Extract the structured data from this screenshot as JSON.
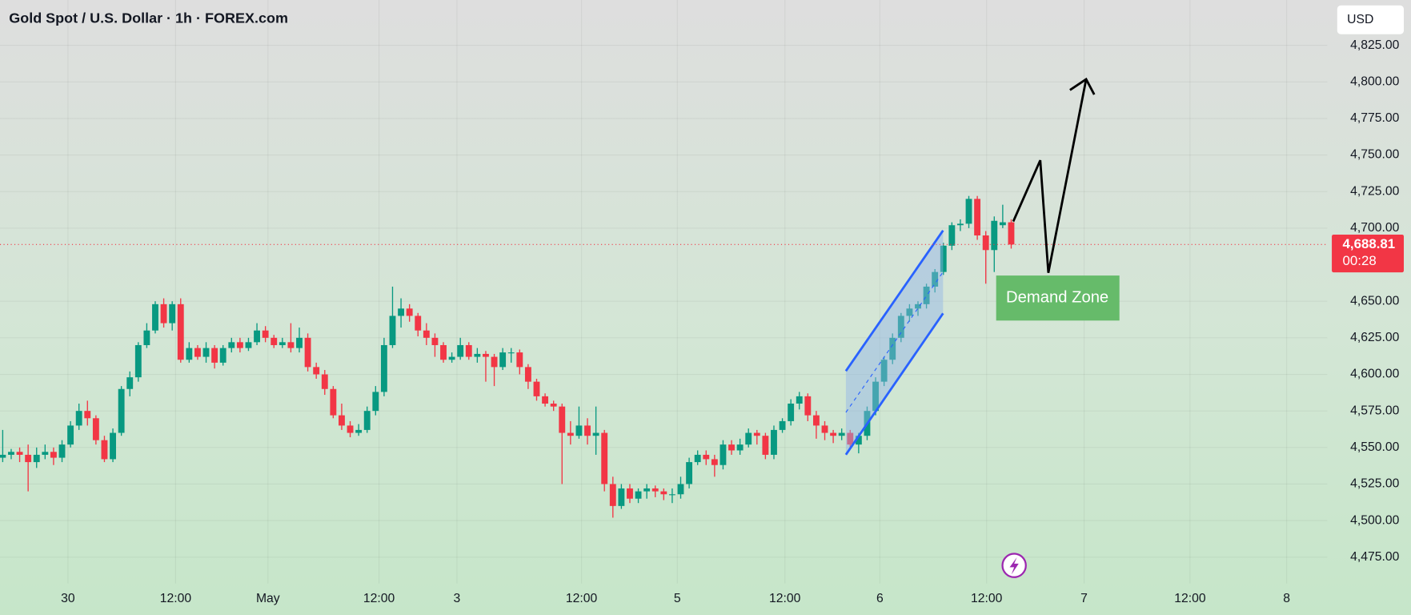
{
  "chart_data": {
    "type": "candlestick",
    "title": "Gold Spot / U.S. Dollar · 1h · FOREX.com",
    "currency": "USD",
    "last_price_label": "4,688.81",
    "countdown": "00:28",
    "annotation": "Demand Zone",
    "up_color": "#089981",
    "down_color": "#f23645",
    "grid": true,
    "xlim": [
      -0.32,
      156.3
    ],
    "ylim": [
      4457,
      4856
    ],
    "xticks": [
      {
        "value": 7.7,
        "label": "30"
      },
      {
        "value": 20.4,
        "label": "12:00"
      },
      {
        "value": 31.3,
        "label": "May"
      },
      {
        "value": 44.4,
        "label": "12:00"
      },
      {
        "value": 53.6,
        "label": "3"
      },
      {
        "value": 68.3,
        "label": "12:00"
      },
      {
        "value": 79.6,
        "label": "5"
      },
      {
        "value": 92.3,
        "label": "12:00"
      },
      {
        "value": 103.5,
        "label": "6"
      },
      {
        "value": 116.1,
        "label": "12:00"
      },
      {
        "value": 127.6,
        "label": "7"
      },
      {
        "value": 140.1,
        "label": "12:00"
      },
      {
        "value": 151.5,
        "label": "8"
      }
    ],
    "yticks": [
      {
        "value": 4475,
        "label": "4,475.00"
      },
      {
        "value": 4500,
        "label": "4,500.00"
      },
      {
        "value": 4525,
        "label": "4,525.00"
      },
      {
        "value": 4550,
        "label": "4,550.00"
      },
      {
        "value": 4575,
        "label": "4,575.00"
      },
      {
        "value": 4600,
        "label": "4,600.00"
      },
      {
        "value": 4625,
        "label": "4,625.00"
      },
      {
        "value": 4650,
        "label": "4,650.00"
      },
      {
        "value": 4700,
        "label": "4,700.00"
      },
      {
        "value": 4725,
        "label": "4,725.00"
      },
      {
        "value": 4750,
        "label": "4,750.00"
      },
      {
        "value": 4775,
        "label": "4,775.00"
      },
      {
        "value": 4800,
        "label": "4,800.00"
      },
      {
        "value": 4825,
        "label": "4,825.00"
      }
    ],
    "ohlc": [
      [
        4543,
        4562,
        4540,
        4545
      ],
      [
        4545,
        4549,
        4542,
        4547
      ],
      [
        4547,
        4550,
        4540,
        4545
      ],
      [
        4545,
        4552,
        4520,
        4540
      ],
      [
        4540,
        4550,
        4536,
        4545
      ],
      [
        4545,
        4552,
        4542,
        4547
      ],
      [
        4547,
        4550,
        4538,
        4543
      ],
      [
        4543,
        4555,
        4540,
        4552
      ],
      [
        4552,
        4568,
        4550,
        4565
      ],
      [
        4565,
        4580,
        4562,
        4575
      ],
      [
        4575,
        4582,
        4565,
        4570
      ],
      [
        4570,
        4572,
        4552,
        4555
      ],
      [
        4555,
        4558,
        4540,
        4542
      ],
      [
        4542,
        4563,
        4540,
        4560
      ],
      [
        4560,
        4592,
        4558,
        4590
      ],
      [
        4590,
        4602,
        4585,
        4598
      ],
      [
        4598,
        4622,
        4595,
        4620
      ],
      [
        4620,
        4635,
        4618,
        4630
      ],
      [
        4630,
        4650,
        4628,
        4648
      ],
      [
        4648,
        4652,
        4632,
        4635
      ],
      [
        4635,
        4650,
        4630,
        4648
      ],
      [
        4648,
        4652,
        4608,
        4610
      ],
      [
        4610,
        4622,
        4608,
        4618
      ],
      [
        4618,
        4620,
        4610,
        4612
      ],
      [
        4612,
        4622,
        4608,
        4618
      ],
      [
        4618,
        4620,
        4604,
        4608
      ],
      [
        4608,
        4620,
        4606,
        4618
      ],
      [
        4618,
        4625,
        4615,
        4622
      ],
      [
        4622,
        4625,
        4615,
        4618
      ],
      [
        4618,
        4625,
        4616,
        4622
      ],
      [
        4622,
        4635,
        4620,
        4630
      ],
      [
        4630,
        4633,
        4622,
        4625
      ],
      [
        4625,
        4627,
        4618,
        4620
      ],
      [
        4620,
        4625,
        4618,
        4622
      ],
      [
        4622,
        4635,
        4615,
        4618
      ],
      [
        4618,
        4632,
        4615,
        4625
      ],
      [
        4625,
        4628,
        4602,
        4605
      ],
      [
        4605,
        4608,
        4597,
        4600
      ],
      [
        4600,
        4603,
        4586,
        4590
      ],
      [
        4590,
        4592,
        4570,
        4572
      ],
      [
        4572,
        4580,
        4562,
        4565
      ],
      [
        4565,
        4568,
        4557,
        4560
      ],
      [
        4560,
        4566,
        4558,
        4562
      ],
      [
        4562,
        4578,
        4560,
        4575
      ],
      [
        4575,
        4592,
        4572,
        4588
      ],
      [
        4588,
        4625,
        4585,
        4620
      ],
      [
        4620,
        4660,
        4618,
        4640
      ],
      [
        4640,
        4652,
        4632,
        4645
      ],
      [
        4645,
        4648,
        4636,
        4640
      ],
      [
        4640,
        4642,
        4626,
        4630
      ],
      [
        4630,
        4635,
        4620,
        4625
      ],
      [
        4625,
        4628,
        4612,
        4620
      ],
      [
        4620,
        4622,
        4608,
        4610
      ],
      [
        4610,
        4615,
        4608,
        4612
      ],
      [
        4612,
        4625,
        4610,
        4620
      ],
      [
        4620,
        4622,
        4610,
        4612
      ],
      [
        4612,
        4618,
        4608,
        4614
      ],
      [
        4614,
        4616,
        4595,
        4612
      ],
      [
        4612,
        4614,
        4592,
        4605
      ],
      [
        4605,
        4618,
        4603,
        4615
      ],
      [
        4615,
        4618,
        4608,
        4615
      ],
      [
        4615,
        4617,
        4600,
        4605
      ],
      [
        4605,
        4607,
        4590,
        4595
      ],
      [
        4595,
        4597,
        4582,
        4585
      ],
      [
        4585,
        4587,
        4578,
        4580
      ],
      [
        4580,
        4582,
        4575,
        4578
      ],
      [
        4578,
        4580,
        4525,
        4560
      ],
      [
        4560,
        4568,
        4552,
        4558
      ],
      [
        4558,
        4578,
        4556,
        4565
      ],
      [
        4565,
        4570,
        4552,
        4558
      ],
      [
        4558,
        4578,
        4545,
        4560
      ],
      [
        4560,
        4562,
        4520,
        4525
      ],
      [
        4525,
        4530,
        4502,
        4510
      ],
      [
        4510,
        4525,
        4508,
        4522
      ],
      [
        4522,
        4525,
        4512,
        4515
      ],
      [
        4515,
        4522,
        4512,
        4520
      ],
      [
        4520,
        4525,
        4515,
        4522
      ],
      [
        4522,
        4524,
        4516,
        4520
      ],
      [
        4520,
        4522,
        4514,
        4518
      ],
      [
        4518,
        4522,
        4512,
        4518
      ],
      [
        4518,
        4530,
        4515,
        4525
      ],
      [
        4525,
        4543,
        4522,
        4540
      ],
      [
        4540,
        4548,
        4538,
        4545
      ],
      [
        4545,
        4548,
        4538,
        4542
      ],
      [
        4542,
        4545,
        4530,
        4538
      ],
      [
        4538,
        4555,
        4535,
        4552
      ],
      [
        4552,
        4555,
        4545,
        4548
      ],
      [
        4548,
        4556,
        4545,
        4552
      ],
      [
        4552,
        4563,
        4550,
        4560
      ],
      [
        4560,
        4562,
        4552,
        4558
      ],
      [
        4558,
        4560,
        4542,
        4545
      ],
      [
        4545,
        4565,
        4542,
        4562
      ],
      [
        4562,
        4570,
        4560,
        4568
      ],
      [
        4568,
        4583,
        4565,
        4580
      ],
      [
        4580,
        4588,
        4576,
        4585
      ],
      [
        4585,
        4587,
        4568,
        4572
      ],
      [
        4572,
        4575,
        4556,
        4565
      ],
      [
        4565,
        4568,
        4555,
        4560
      ],
      [
        4560,
        4562,
        4553,
        4558
      ],
      [
        4558,
        4563,
        4555,
        4560
      ],
      [
        4560,
        4562,
        4550,
        4552
      ],
      [
        4552,
        4560,
        4546,
        4558
      ],
      [
        4558,
        4578,
        4555,
        4575
      ],
      [
        4575,
        4598,
        4572,
        4595
      ],
      [
        4595,
        4612,
        4592,
        4610
      ],
      [
        4610,
        4628,
        4607,
        4625
      ],
      [
        4625,
        4642,
        4622,
        4640
      ],
      [
        4640,
        4648,
        4636,
        4645
      ],
      [
        4645,
        4650,
        4640,
        4648
      ],
      [
        4648,
        4662,
        4645,
        4660
      ],
      [
        4660,
        4672,
        4656,
        4670
      ],
      [
        4670,
        4690,
        4668,
        4688
      ],
      [
        4688,
        4704,
        4685,
        4702
      ],
      [
        4702,
        4706,
        4698,
        4703
      ],
      [
        4703,
        4722,
        4700,
        4720
      ],
      [
        4720,
        4722,
        4692,
        4695
      ],
      [
        4695,
        4698,
        4662,
        4685
      ],
      [
        4685,
        4708,
        4670,
        4705
      ],
      [
        4702,
        4716,
        4700,
        4704
      ],
      [
        4704,
        4706,
        4686,
        4688.81
      ]
    ]
  }
}
